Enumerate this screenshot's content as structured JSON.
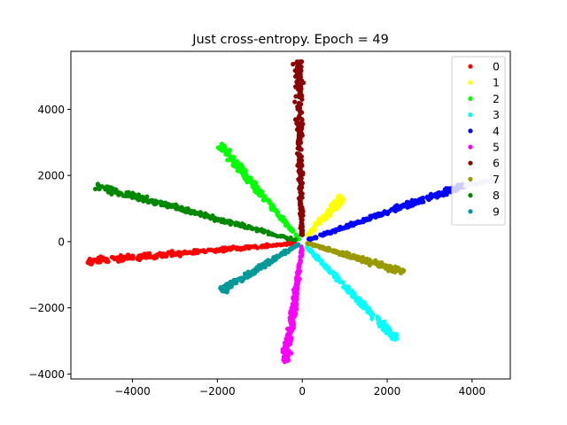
{
  "chart_data": {
    "type": "scatter",
    "title": "Just cross-entropy. Epoch = 49",
    "xlabel": "",
    "ylabel": "",
    "xlim": [
      -5450,
      4900
    ],
    "ylim": [
      -4150,
      5750
    ],
    "x_ticks": [
      -4000,
      -2000,
      0,
      2000,
      4000
    ],
    "y_ticks": [
      -4000,
      -2000,
      0,
      2000,
      4000
    ],
    "grid": false,
    "legend_position": "top-right",
    "series": [
      {
        "name": "0",
        "color": "#ff0000",
        "start": [
          -150,
          -50
        ],
        "end": [
          -5100,
          -600
        ],
        "points": 260
      },
      {
        "name": "1",
        "color": "#ffff00",
        "start": [
          80,
          130
        ],
        "end": [
          950,
          1350
        ],
        "points": 130
      },
      {
        "name": "2",
        "color": "#00ff00",
        "start": [
          -60,
          60
        ],
        "end": [
          -1950,
          2950
        ],
        "points": 200
      },
      {
        "name": "3",
        "color": "#00ffff",
        "start": [
          80,
          -130
        ],
        "end": [
          2250,
          -3000
        ],
        "points": 230
      },
      {
        "name": "4",
        "color": "#0000ff",
        "start": [
          150,
          60
        ],
        "end": [
          3800,
          1700
        ],
        "points": 260
      },
      {
        "name": "4-tail",
        "color": "#c8c8f8",
        "start": [
          3800,
          1700
        ],
        "end": [
          4450,
          1850
        ],
        "points": 25
      },
      {
        "name": "5",
        "color": "#ff00ff",
        "start": [
          0,
          -120
        ],
        "end": [
          -400,
          -3700
        ],
        "points": 220
      },
      {
        "name": "6",
        "color": "#8b0000",
        "start": [
          -10,
          150
        ],
        "end": [
          -100,
          5480
        ],
        "points": 260
      },
      {
        "name": "7",
        "color": "#999900",
        "start": [
          120,
          -40
        ],
        "end": [
          2400,
          -920
        ],
        "points": 180
      },
      {
        "name": "8",
        "color": "#008800",
        "start": [
          -130,
          40
        ],
        "end": [
          -4850,
          1680
        ],
        "points": 260
      },
      {
        "name": "9",
        "color": "#009999",
        "start": [
          -90,
          -80
        ],
        "end": [
          -1900,
          -1480
        ],
        "points": 180
      }
    ],
    "legend": [
      {
        "label": "0",
        "color": "#ff0000"
      },
      {
        "label": "1",
        "color": "#ffff00"
      },
      {
        "label": "2",
        "color": "#00ff00"
      },
      {
        "label": "3",
        "color": "#00ffff"
      },
      {
        "label": "4",
        "color": "#0000ff"
      },
      {
        "label": "5",
        "color": "#ff00ff"
      },
      {
        "label": "6",
        "color": "#8b0000"
      },
      {
        "label": "7",
        "color": "#999900"
      },
      {
        "label": "8",
        "color": "#008800"
      },
      {
        "label": "9",
        "color": "#009999"
      }
    ]
  }
}
